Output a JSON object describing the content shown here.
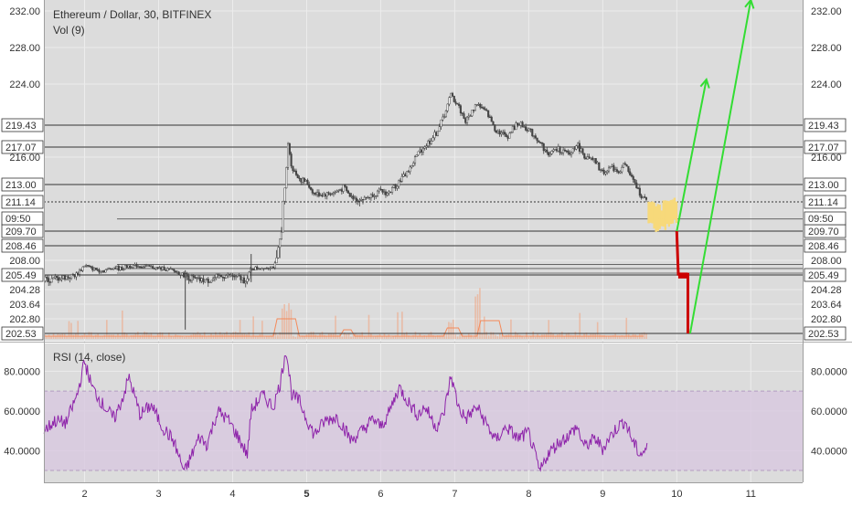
{
  "chart_data": [
    {
      "type": "candlestick",
      "title": "Ethereum / Dollar, 30, BITFINEX",
      "volume_label": "Vol (9)",
      "x_ticks": [
        "2",
        "3",
        "4",
        "5",
        "6",
        "7",
        "8",
        "9",
        "10",
        "11"
      ],
      "x_range": [
        1.45,
        11.7
      ],
      "y_ticks": [
        "232.00",
        "228.00",
        "224.00",
        "216.00",
        "208.00",
        "204.28",
        "203.64",
        "202.80"
      ],
      "y_range": [
        202.0,
        233.0
      ],
      "horizontal_levels": [
        "219.43",
        "217.07",
        "213.00",
        "211.14",
        "209.70",
        "208.46",
        "205.49",
        "202.53"
      ],
      "current_price_label": "211.14",
      "countdown_label": "09:50",
      "price_path": [
        [
          1.45,
          205.0
        ],
        [
          1.75,
          205.3
        ],
        [
          1.9,
          205.7
        ],
        [
          2.0,
          207.2
        ],
        [
          2.1,
          206.6
        ],
        [
          2.25,
          206.2
        ],
        [
          2.4,
          206.8
        ],
        [
          2.5,
          206.5
        ],
        [
          2.6,
          207.1
        ],
        [
          2.75,
          207.0
        ],
        [
          2.9,
          206.8
        ],
        [
          3.05,
          206.6
        ],
        [
          3.2,
          206.2
        ],
        [
          3.35,
          205.5
        ],
        [
          3.5,
          205.1
        ],
        [
          3.65,
          205.0
        ],
        [
          3.8,
          205.3
        ],
        [
          3.95,
          205.5
        ],
        [
          4.1,
          205.2
        ],
        [
          4.2,
          205.1
        ],
        [
          4.25,
          206.6
        ],
        [
          4.4,
          206.7
        ],
        [
          4.55,
          206.9
        ],
        [
          4.63,
          208.5
        ],
        [
          4.7,
          212.0
        ],
        [
          4.75,
          217.5
        ],
        [
          4.8,
          214.8
        ],
        [
          4.9,
          213.7
        ],
        [
          5.0,
          213.2
        ],
        [
          5.1,
          212.0
        ],
        [
          5.25,
          211.9
        ],
        [
          5.4,
          212.2
        ],
        [
          5.5,
          212.7
        ],
        [
          5.6,
          211.6
        ],
        [
          5.75,
          211.4
        ],
        [
          5.9,
          211.9
        ],
        [
          6.0,
          212.3
        ],
        [
          6.1,
          212.0
        ],
        [
          6.25,
          213.4
        ],
        [
          6.4,
          214.8
        ],
        [
          6.5,
          216.4
        ],
        [
          6.6,
          217.2
        ],
        [
          6.75,
          218.5
        ],
        [
          6.85,
          220.4
        ],
        [
          6.95,
          222.8
        ],
        [
          7.05,
          221.6
        ],
        [
          7.15,
          219.8
        ],
        [
          7.3,
          221.9
        ],
        [
          7.45,
          220.6
        ],
        [
          7.55,
          219.0
        ],
        [
          7.7,
          218.2
        ],
        [
          7.85,
          219.6
        ],
        [
          8.0,
          219.0
        ],
        [
          8.15,
          217.6
        ],
        [
          8.25,
          216.3
        ],
        [
          8.4,
          216.9
        ],
        [
          8.55,
          216.2
        ],
        [
          8.65,
          217.5
        ],
        [
          8.75,
          216.1
        ],
        [
          8.9,
          215.4
        ],
        [
          9.0,
          214.2
        ],
        [
          9.1,
          214.9
        ],
        [
          9.2,
          214.4
        ],
        [
          9.3,
          215.2
        ],
        [
          9.4,
          213.5
        ],
        [
          9.5,
          212.1
        ],
        [
          9.58,
          211.2
        ]
      ],
      "projection_bars": [
        [
          9.65,
          210.5
        ],
        [
          9.75,
          210.2
        ],
        [
          9.85,
          210.4
        ],
        [
          9.95,
          210.6
        ]
      ],
      "drop_path": [
        [
          10.0,
          209.7
        ],
        [
          10.02,
          205.6
        ],
        [
          10.15,
          205.6
        ],
        [
          10.15,
          202.53
        ]
      ],
      "arrows_up": [
        {
          "from": [
            10.0,
            209.7
          ],
          "to": [
            10.4,
            224.5
          ]
        },
        {
          "from": [
            10.18,
            202.53
          ],
          "to": [
            11.0,
            233.2
          ]
        }
      ],
      "colors": {
        "candles": "#444444",
        "levels": "#333333",
        "projection": "#f7d97a",
        "drop": "#cc0000",
        "arrow": "#33dd33",
        "volume": "#f3a07a",
        "volume_ma": "#f58a5a"
      }
    },
    {
      "type": "line",
      "title": "RSI (14, close)",
      "y_ticks": [
        "80.0000",
        "60.0000",
        "40.0000"
      ],
      "y_range": [
        24,
        94
      ],
      "band": [
        30,
        70
      ],
      "values_path": [
        [
          1.45,
          50
        ],
        [
          1.6,
          55
        ],
        [
          1.75,
          54
        ],
        [
          1.9,
          68
        ],
        [
          2.0,
          85
        ],
        [
          2.1,
          72
        ],
        [
          2.25,
          63
        ],
        [
          2.4,
          56
        ],
        [
          2.5,
          65
        ],
        [
          2.6,
          77
        ],
        [
          2.75,
          58
        ],
        [
          2.9,
          63
        ],
        [
          3.05,
          52
        ],
        [
          3.2,
          45
        ],
        [
          3.35,
          29
        ],
        [
          3.45,
          38
        ],
        [
          3.55,
          47
        ],
        [
          3.65,
          43
        ],
        [
          3.8,
          60
        ],
        [
          3.95,
          55
        ],
        [
          4.1,
          45
        ],
        [
          4.2,
          38
        ],
        [
          4.25,
          60
        ],
        [
          4.4,
          68
        ],
        [
          4.55,
          62
        ],
        [
          4.65,
          75
        ],
        [
          4.72,
          92
        ],
        [
          4.8,
          68
        ],
        [
          4.9,
          65
        ],
        [
          5.0,
          56
        ],
        [
          5.1,
          48
        ],
        [
          5.25,
          55
        ],
        [
          5.4,
          57
        ],
        [
          5.5,
          52
        ],
        [
          5.6,
          45
        ],
        [
          5.75,
          50
        ],
        [
          5.9,
          56
        ],
        [
          6.0,
          52
        ],
        [
          6.1,
          58
        ],
        [
          6.25,
          72
        ],
        [
          6.4,
          63
        ],
        [
          6.5,
          58
        ],
        [
          6.6,
          62
        ],
        [
          6.75,
          52
        ],
        [
          6.85,
          58
        ],
        [
          6.95,
          78
        ],
        [
          7.05,
          62
        ],
        [
          7.15,
          56
        ],
        [
          7.3,
          62
        ],
        [
          7.45,
          52
        ],
        [
          7.55,
          45
        ],
        [
          7.7,
          52
        ],
        [
          7.85,
          46
        ],
        [
          8.0,
          49
        ],
        [
          8.15,
          29
        ],
        [
          8.25,
          38
        ],
        [
          8.4,
          44
        ],
        [
          8.55,
          48
        ],
        [
          8.65,
          52
        ],
        [
          8.75,
          42
        ],
        [
          8.9,
          46
        ],
        [
          9.0,
          41
        ],
        [
          9.1,
          47
        ],
        [
          9.2,
          52
        ],
        [
          9.3,
          55
        ],
        [
          9.4,
          45
        ],
        [
          9.5,
          38
        ],
        [
          9.6,
          41
        ]
      ],
      "colors": {
        "line": "#8e24aa",
        "band": "#d8c8e0"
      }
    }
  ]
}
